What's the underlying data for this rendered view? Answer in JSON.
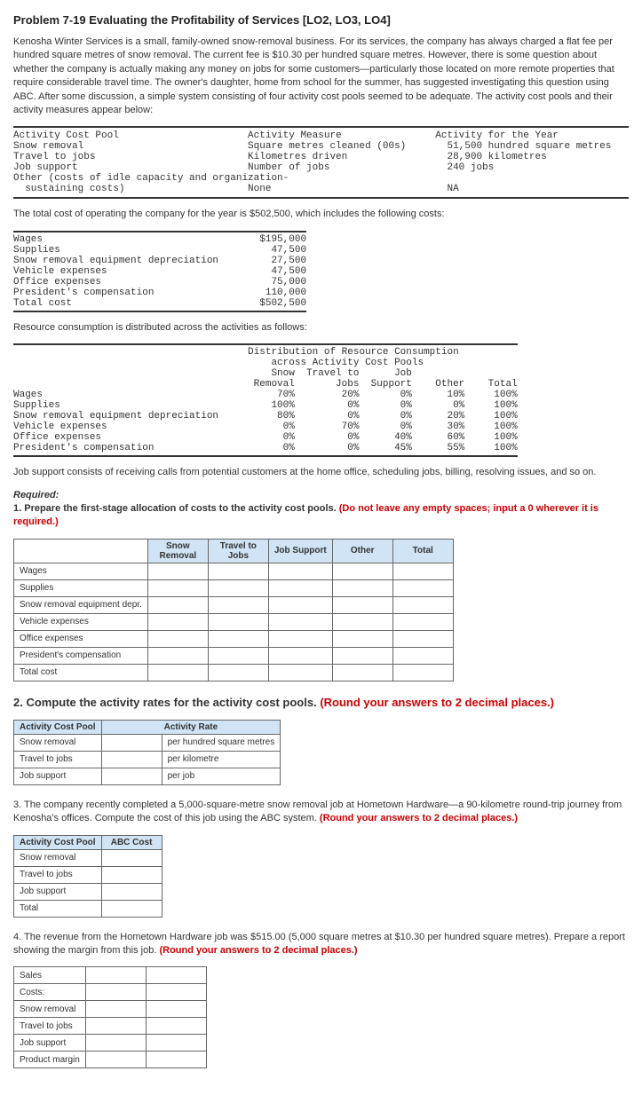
{
  "title": "Problem 7-19 Evaluating the Profitability of Services [LO2, LO3, LO4]",
  "intro": "Kenosha Winter Services is a small, family-owned snow-removal business. For its services, the company has always charged a flat fee per hundred square metres of snow removal. The current fee is $10.30 per hundred square metres. However, there is some question about whether the company is actually making any money on jobs for some customers—particularly those located on more remote properties that require considerable travel time. The owner's daughter, home from school for the summer, has suggested investigating this question using ABC. After some discussion, a simple system consisting of four activity cost pools seemed to be adequate. The activity cost pools and their activity measures appear below:",
  "pool_table": {
    "h1": "Activity Cost Pool",
    "h2": "Activity Measure",
    "h3": "Activity for the Year",
    "rows": [
      [
        "Snow removal",
        "Square metres cleaned (00s)",
        "51,500 hundred square metres"
      ],
      [
        "Travel to jobs",
        "Kilometres driven",
        "28,900 kilometres"
      ],
      [
        "Job support",
        "Number of jobs",
        "240 jobs"
      ],
      [
        "Other (costs of idle capacity and organization-",
        "",
        ""
      ],
      [
        "  sustaining costs)",
        "None",
        "NA"
      ]
    ]
  },
  "total_cost_text": "The total cost of operating the company for the year is $502,500, which includes the following costs:",
  "costs": {
    "rows": [
      [
        "Wages",
        "$195,000"
      ],
      [
        "Supplies",
        "47,500"
      ],
      [
        "Snow removal equipment depreciation",
        "27,500"
      ],
      [
        "Vehicle expenses",
        "47,500"
      ],
      [
        "Office expenses",
        "75,000"
      ],
      [
        "President's compensation",
        "110,000"
      ]
    ],
    "total_label": "Total cost",
    "total_value": "$502,500"
  },
  "resource_text": "Resource consumption is distributed across the activities as follows:",
  "dist": {
    "title1": "Distribution of Resource Consumption",
    "title2": "across Activity Cost Pools",
    "headers": [
      "",
      "Snow\nRemoval",
      "Travel to\nJobs",
      "Job\nSupport",
      "Other",
      "Total"
    ],
    "rows": [
      [
        "Wages",
        "70%",
        "20%",
        "0%",
        "10%",
        "100%"
      ],
      [
        "Supplies",
        "100%",
        "0%",
        "0%",
        "0%",
        "100%"
      ],
      [
        "Snow removal equipment depreciation",
        "80%",
        "0%",
        "0%",
        "20%",
        "100%"
      ],
      [
        "Vehicle expenses",
        "0%",
        "70%",
        "0%",
        "30%",
        "100%"
      ],
      [
        "Office expenses",
        "0%",
        "0%",
        "40%",
        "60%",
        "100%"
      ],
      [
        "President's compensation",
        "0%",
        "0%",
        "45%",
        "55%",
        "100%"
      ]
    ]
  },
  "job_support_text": "Job support consists of receiving calls from potential customers at the home office, scheduling jobs, billing, resolving issues, and so on.",
  "required_label": "Required:",
  "q1_text": "1. Prepare the first-stage allocation of costs to the activity cost pools. ",
  "q1_red": "(Do not leave any empty spaces; input a 0 wherever it is required.)",
  "q1_table": {
    "headers": [
      "",
      "Snow\nRemoval",
      "Travel to\nJobs",
      "Job Support",
      "Other",
      "Total"
    ],
    "rows": [
      "Wages",
      "Supplies",
      "Snow removal equipment depr.",
      "Vehicle expenses",
      "Office expenses",
      "President's compensation",
      "Total cost"
    ]
  },
  "q2_text": "2. Compute the activity rates for the activity cost pools. ",
  "q2_red": "(Round your answers to 2 decimal places.)",
  "q2_table": {
    "h1": "Activity Cost Pool",
    "h2": "Activity Rate",
    "rows": [
      [
        "Snow removal",
        "per hundred square metres"
      ],
      [
        "Travel to jobs",
        "per kilometre"
      ],
      [
        "Job support",
        "per job"
      ]
    ]
  },
  "q3_text": "3. The company recently completed a 5,000-square-metre snow removal job at Hometown Hardware—a 90-kilometre round-trip journey from Kenosha's offices. Compute the cost of this job using the ABC system. ",
  "q3_red": "(Round your answers to 2 decimal places.)",
  "q3_table": {
    "h1": "Activity Cost Pool",
    "h2": "ABC Cost",
    "rows": [
      "Snow removal",
      "Travel to jobs",
      "Job support",
      "Total"
    ]
  },
  "q4_text": "4. The revenue from the Hometown Hardware job was $515.00 (5,000 square metres at $10.30 per hundred square metres). Prepare a report showing the margin from this job. ",
  "q4_red": "(Round your answers to 2 decimal places.)",
  "q4_table": {
    "rows": [
      "Sales",
      "Costs:",
      "Snow removal",
      "Travel to jobs",
      "Job support",
      "Product margin"
    ]
  }
}
